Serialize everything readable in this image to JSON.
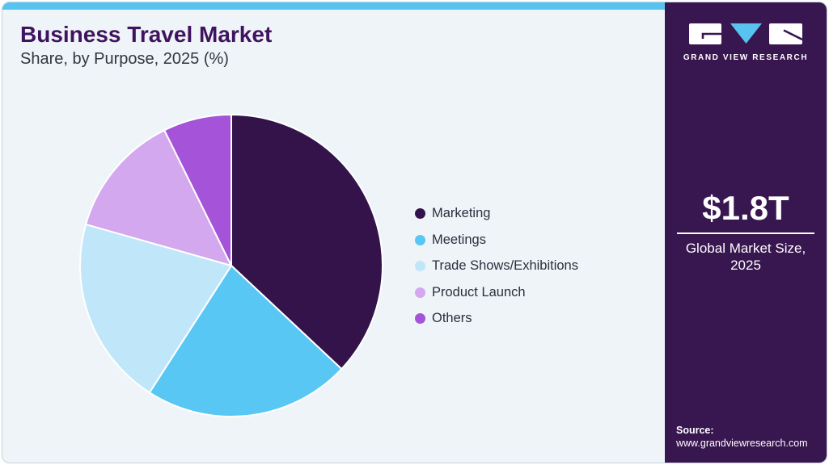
{
  "header": {
    "title": "Business Travel Market",
    "subtitle": "Share, by Purpose, 2025 (%)"
  },
  "sidebar": {
    "brand": "GRAND VIEW RESEARCH",
    "market_size_value": "$1.8T",
    "market_size_label_line1": "Global Market Size,",
    "market_size_label_line2": "2025",
    "source_label": "Source:",
    "source_url": "www.grandviewresearch.com"
  },
  "colors": {
    "accent-blue": "#58c3ee",
    "sidebar-bg": "#38164f",
    "card-bg": "#eef4f8",
    "title-color": "#40135e",
    "subtitle-color": "#35343f",
    "legend-text": "#2e2d3d",
    "slice-stroke": "#ffffff"
  },
  "chart_data": {
    "type": "pie",
    "title": "Business Travel Market Share, by Purpose, 2025 (%)",
    "unit": "%",
    "legend_position": "right",
    "data_labels": false,
    "start_angle_deg": 0,
    "direction": "clockwise",
    "segments": [
      {
        "label": "Marketing",
        "value": 37.0,
        "color": "#33134a"
      },
      {
        "label": "Meetings",
        "value": 22.1,
        "color": "#58c7f3"
      },
      {
        "label": "Trade Shows/Exhibitions",
        "value": 20.3,
        "color": "#bfe7f9"
      },
      {
        "label": "Product Launch",
        "value": 13.3,
        "color": "#d3a8ee"
      },
      {
        "label": "Others",
        "value": 7.3,
        "color": "#a553d8"
      }
    ]
  }
}
